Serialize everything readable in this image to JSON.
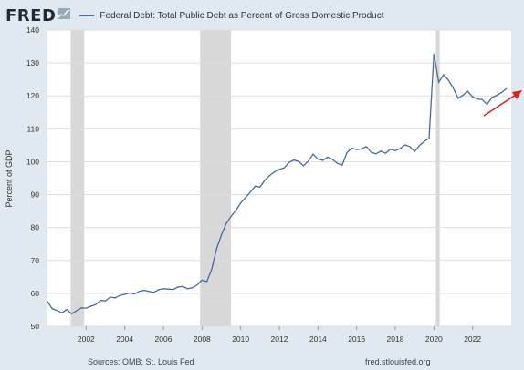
{
  "header": {
    "logo_text": "FRED",
    "series_label": "Federal Debt: Total Public Debt as Percent of Gross Domestic Product"
  },
  "footer": {
    "source": "Sources: OMB; St. Louis Fed",
    "site": "fred.stlouisfed.org"
  },
  "colors": {
    "line": "#4a6a9b",
    "recession": "#d8d8d8",
    "arrow": "#e02020",
    "grid": "#dddddd"
  },
  "chart_data": {
    "type": "line",
    "title": "Federal Debt: Total Public Debt as Percent of Gross Domestic Product",
    "ylabel": "Percent of GDP",
    "xlabel": "",
    "xlim": [
      2000.0,
      2024.0
    ],
    "ylim": [
      50,
      140
    ],
    "x_ticks": [
      "2002",
      "2004",
      "2006",
      "2008",
      "2010",
      "2012",
      "2014",
      "2016",
      "2018",
      "2020",
      "2022"
    ],
    "y_ticks": [
      "140",
      "130",
      "120",
      "110",
      "100",
      "90",
      "80",
      "70",
      "60",
      "50"
    ],
    "grid": true,
    "recessions": [
      [
        2001.2,
        2001.9
      ],
      [
        2007.9,
        2009.5
      ],
      [
        2020.1,
        2020.3
      ]
    ],
    "annotation": "red arrow pointing up-right at end of series",
    "series": [
      {
        "x": [
          2000.0,
          2000.25,
          2000.5,
          2000.75,
          2001.0,
          2001.25,
          2001.5,
          2001.75,
          2002.0,
          2002.25,
          2002.5,
          2002.75,
          2003.0,
          2003.25,
          2003.5,
          2003.75,
          2004.0,
          2004.25,
          2004.5,
          2004.75,
          2005.0,
          2005.25,
          2005.5,
          2005.75,
          2006.0,
          2006.25,
          2006.5,
          2006.75,
          2007.0,
          2007.25,
          2007.5,
          2007.75,
          2008.0,
          2008.25,
          2008.5,
          2008.75,
          2009.0,
          2009.25,
          2009.5,
          2009.75,
          2010.0,
          2010.25,
          2010.5,
          2010.75,
          2011.0,
          2011.25,
          2011.5,
          2011.75,
          2012.0,
          2012.25,
          2012.5,
          2012.75,
          2013.0,
          2013.25,
          2013.5,
          2013.75,
          2014.0,
          2014.25,
          2014.5,
          2014.75,
          2015.0,
          2015.25,
          2015.5,
          2015.75,
          2016.0,
          2016.25,
          2016.5,
          2016.75,
          2017.0,
          2017.25,
          2017.5,
          2017.75,
          2018.0,
          2018.25,
          2018.5,
          2018.75,
          2019.0,
          2019.25,
          2019.5,
          2019.75,
          2020.0,
          2020.25,
          2020.5,
          2020.75,
          2021.0,
          2021.25,
          2021.5,
          2021.75,
          2022.0,
          2022.25,
          2022.5,
          2022.75,
          2023.0,
          2023.25,
          2023.5,
          2023.75
        ],
        "y": [
          57.5,
          55.3,
          54.8,
          54.1,
          55.1,
          53.8,
          54.7,
          55.6,
          55.5,
          56.1,
          56.6,
          57.9,
          57.7,
          58.9,
          58.6,
          59.4,
          59.7,
          60.1,
          59.8,
          60.6,
          60.9,
          60.6,
          60.3,
          61.1,
          61.4,
          61.3,
          61.2,
          61.9,
          62.1,
          61.4,
          61.7,
          62.6,
          64.0,
          63.6,
          67.3,
          73.5,
          77.7,
          81.2,
          83.4,
          85.2,
          87.5,
          89.1,
          90.8,
          92.6,
          92.3,
          94.4,
          95.8,
          96.9,
          97.7,
          98.1,
          99.8,
          100.5,
          100.1,
          98.8,
          100.2,
          102.3,
          100.8,
          100.4,
          101.4,
          100.7,
          99.5,
          98.9,
          102.8,
          104.1,
          103.7,
          103.9,
          104.6,
          102.9,
          102.4,
          103.2,
          102.6,
          103.8,
          103.4,
          104.0,
          105.1,
          104.6,
          103.1,
          104.9,
          106.2,
          107.1,
          132.7,
          124.2,
          126.4,
          124.8,
          122.4,
          119.3,
          120.2,
          121.4,
          119.7,
          119.1,
          118.9,
          117.4,
          119.5,
          120.2,
          121.0,
          122.2
        ]
      }
    ]
  }
}
